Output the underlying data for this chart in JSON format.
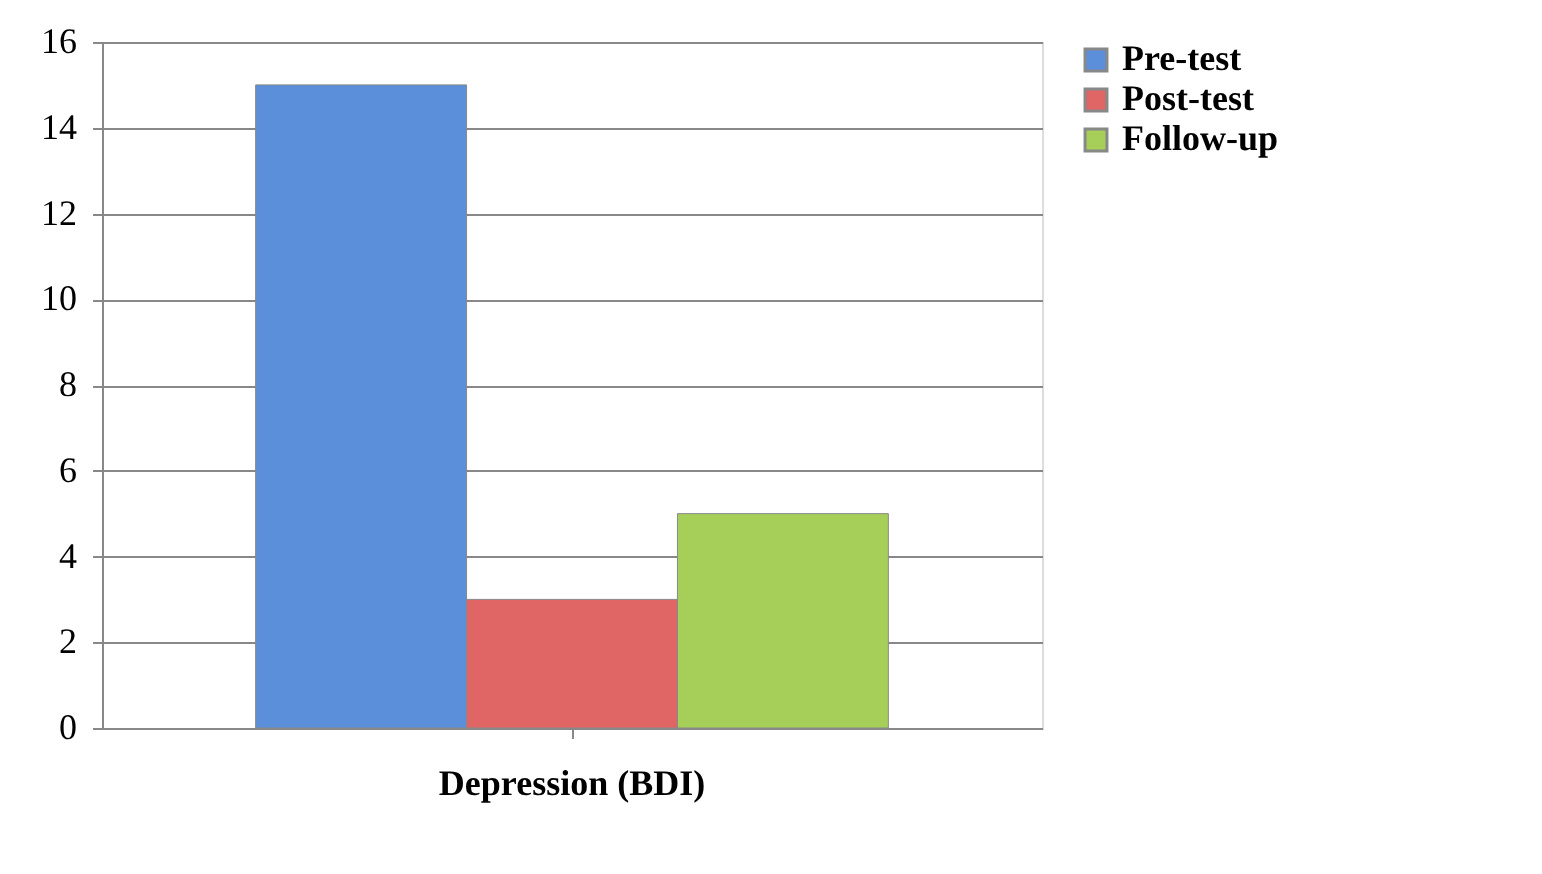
{
  "chart_data": {
    "type": "bar",
    "categories": [
      "Depression (BDI)"
    ],
    "series": [
      {
        "name": "Pre-test",
        "color": "#5b8fd9",
        "values": [
          15
        ]
      },
      {
        "name": "Post-test",
        "color": "#e06666",
        "values": [
          3
        ]
      },
      {
        "name": "Follow-up",
        "color": "#a6cf5a",
        "values": [
          5
        ]
      }
    ],
    "ylim": [
      0,
      16
    ],
    "yticks": [
      0,
      2,
      4,
      6,
      8,
      10,
      12,
      14,
      16
    ],
    "grid": "y",
    "legend": "right"
  }
}
